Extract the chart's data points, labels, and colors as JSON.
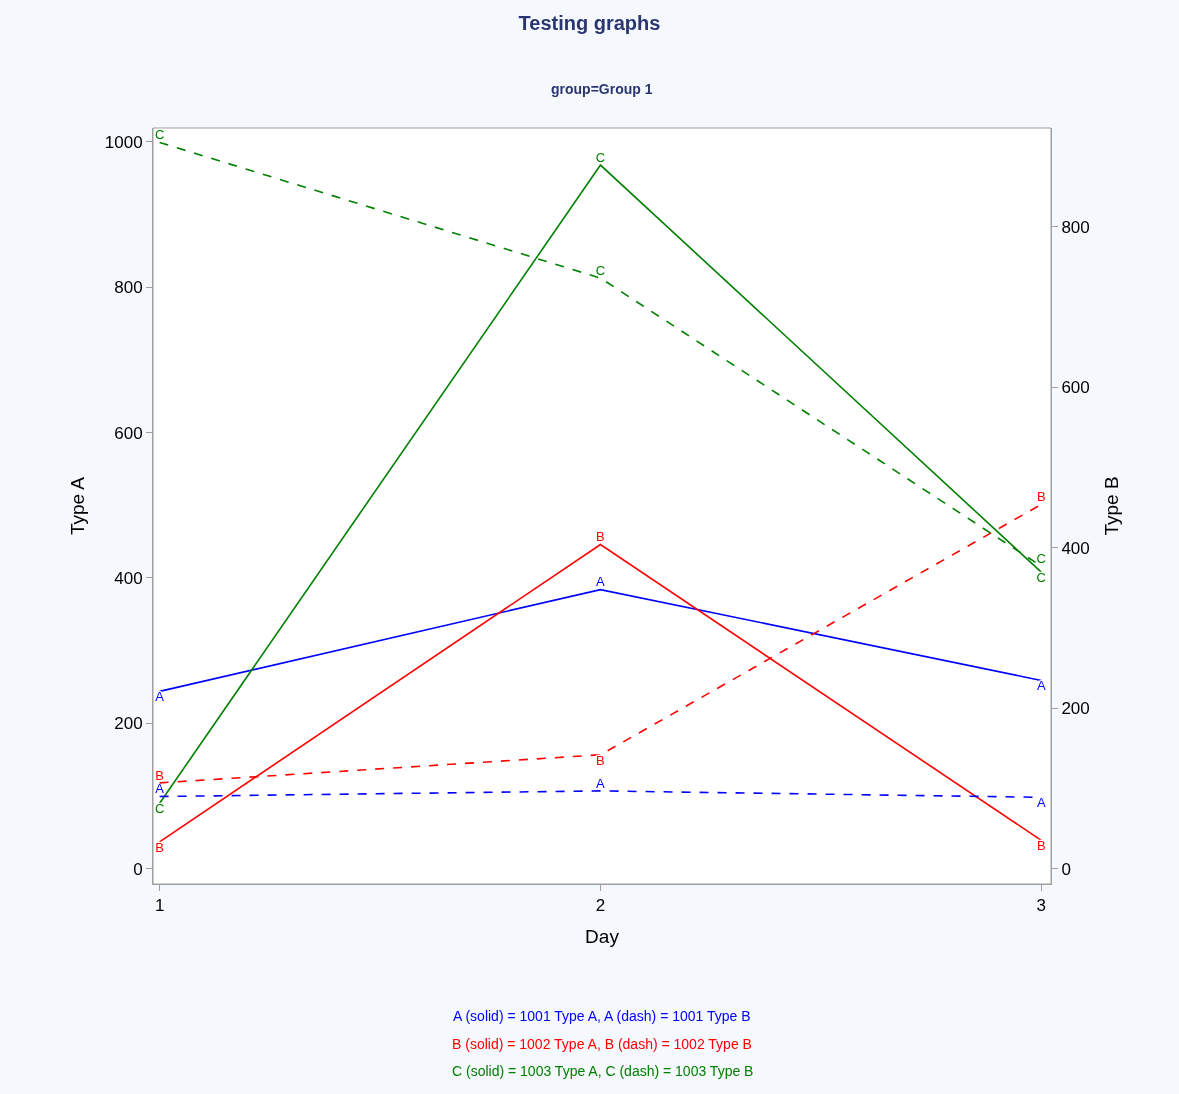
{
  "chart_data": {
    "type": "line",
    "title": "Testing graphs",
    "subtitle": "group=Group 1",
    "xlabel": "Day",
    "ylabel": "Type A",
    "y2label": "Type B",
    "x": [
      1,
      2,
      3
    ],
    "xlim": [
      0.985,
      3.022
    ],
    "xticks": [
      1,
      2,
      3
    ],
    "ylim": [
      -21,
      1019
    ],
    "yticks": [
      0,
      200,
      400,
      600,
      800,
      1000
    ],
    "y2lim": [
      -19,
      923
    ],
    "y2ticks": [
      0,
      200,
      400,
      600,
      800
    ],
    "grid": false,
    "legend": false,
    "series": [
      {
        "name": "A",
        "color": "#0000ff",
        "line_style": "solid",
        "values": [
          244,
          384,
          259
        ]
      },
      {
        "name": "A",
        "color": "#0000ff",
        "line_style": "dashed",
        "axis": "y2",
        "values": [
          90,
          97,
          89
        ]
      },
      {
        "name": "B",
        "color": "#ff0000",
        "line_style": "solid",
        "values": [
          37,
          446,
          39
        ]
      },
      {
        "name": "B",
        "color": "#ff0000",
        "line_style": "dashed",
        "axis": "y2",
        "values": [
          107,
          142,
          454
        ]
      },
      {
        "name": "C",
        "color": "#008000",
        "line_style": "solid",
        "values": [
          90,
          968,
          408
        ]
      },
      {
        "name": "C",
        "color": "#008000",
        "line_style": "dashed",
        "axis": "y2",
        "values": [
          905,
          736,
          377
        ]
      }
    ],
    "annotations": [
      "A (solid) = 1001 Type A, A (dash) = 1001 Type B",
      "B (solid) = 1002 Type A, B (dash) = 1002 Type B",
      "C (solid) = 1003 Type A, C (dash) = 1003 Type B"
    ]
  }
}
